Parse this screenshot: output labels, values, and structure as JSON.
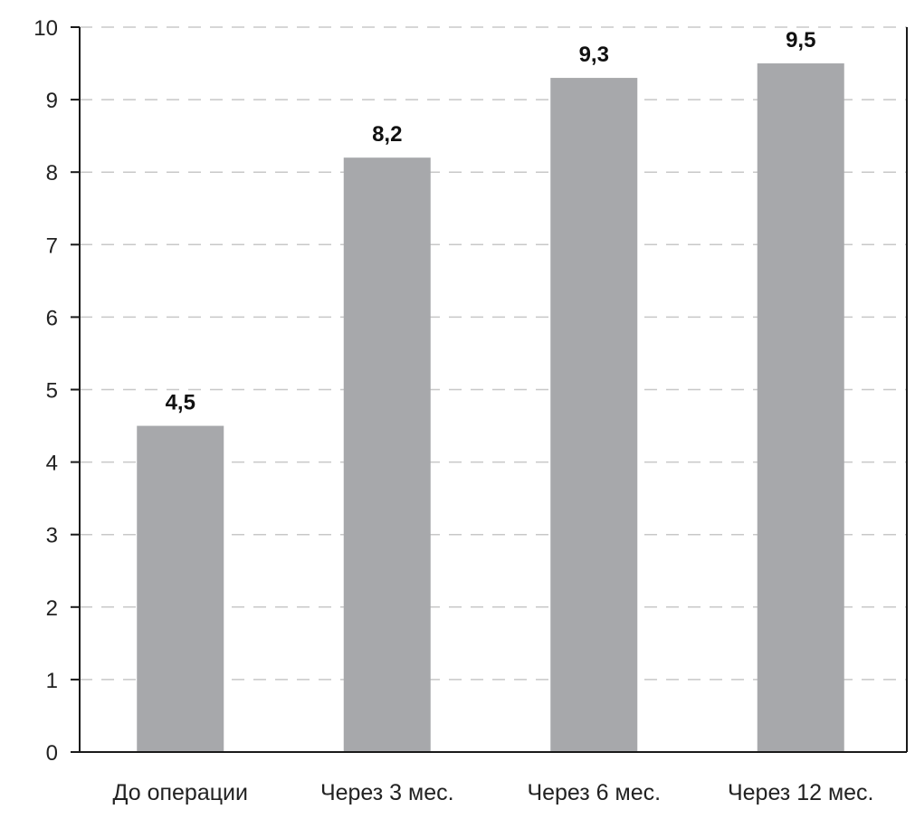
{
  "chart_data": {
    "type": "bar",
    "categories": [
      "До операции",
      "Через 3 мес.",
      "Через 6 мес.",
      "Через 12 мес."
    ],
    "values": [
      4.5,
      8.2,
      9.3,
      9.5
    ],
    "value_labels": [
      "4,5",
      "8,2",
      "9,3",
      "9,5"
    ],
    "title": "",
    "xlabel": "",
    "ylabel": "",
    "ylim": [
      0,
      10
    ],
    "yticks": [
      "0",
      "1",
      "2",
      "3",
      "4",
      "5",
      "6",
      "7",
      "8",
      "9",
      "10"
    ],
    "grid": true,
    "grid_style": "dashed",
    "bar_color": "#a7a8ab",
    "axis_color": "#1a1a1a",
    "grid_color": "#c8c8c8"
  }
}
